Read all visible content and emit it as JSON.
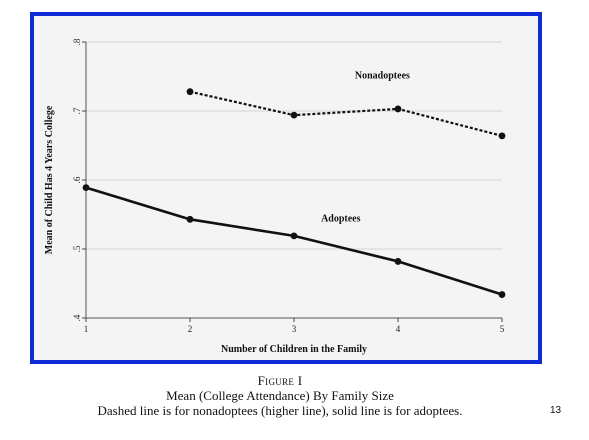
{
  "chart_data": {
    "type": "line",
    "x": [
      1,
      2,
      3,
      4,
      5
    ],
    "xlabel": "Number of Children in the Family",
    "ylabel": "Mean of Child Has 4 Years College",
    "xlim": [
      1,
      5
    ],
    "ylim": [
      0.4,
      0.8
    ],
    "x_ticks": [
      "1",
      "2",
      "3",
      "4",
      "5"
    ],
    "y_ticks": [
      ".4",
      ".5",
      ".6",
      ".7",
      ".8"
    ],
    "y_tick_values": [
      0.4,
      0.5,
      0.6,
      0.7,
      0.8
    ],
    "grid": "horizontal",
    "series": [
      {
        "name": "Nonadoptees",
        "style": "dashed",
        "x": [
          2,
          3,
          4,
          5
        ],
        "values": [
          0.728,
          0.694,
          0.703,
          0.664
        ]
      },
      {
        "name": "Adoptees",
        "style": "solid",
        "x": [
          1,
          2,
          3,
          4,
          5
        ],
        "values": [
          0.589,
          0.543,
          0.519,
          0.482,
          0.434
        ]
      }
    ],
    "colors": {
      "frame": "#0f2bd6",
      "line": "#111111",
      "grid": "#d4d4d4",
      "plot_bg": "#f4f4f4"
    }
  },
  "caption": {
    "figure_label": "Figure I",
    "title": "Mean (College Attendance) By Family Size",
    "note": "Dashed line is for nonadoptees (higher line), solid line is for adoptees."
  },
  "slide_number": "13"
}
